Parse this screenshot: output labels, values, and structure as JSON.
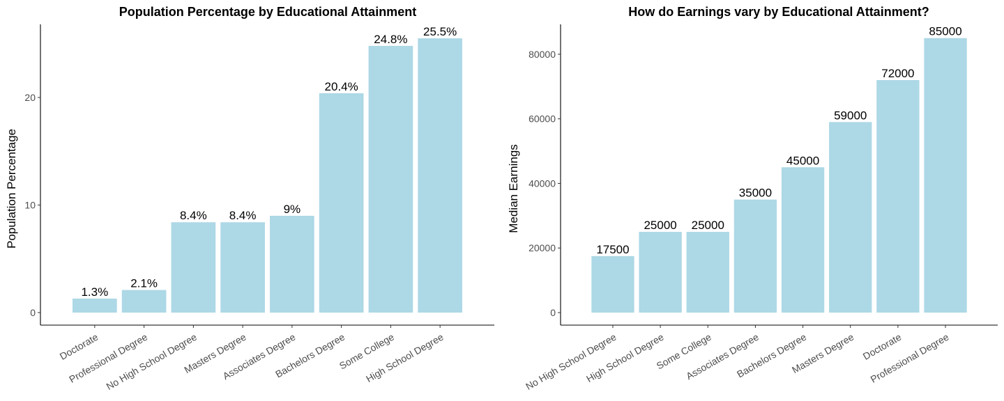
{
  "chart_data": [
    {
      "type": "bar",
      "title": "Population Percentage by Educational Attainment",
      "xlabel": "",
      "ylabel": "Population Percentage",
      "categories": [
        "Doctorate",
        "Professional Degree",
        "No High School Degree",
        "Masters Degree",
        "Associates Degree",
        "Bachelors Degree",
        "Some College",
        "High School Degree"
      ],
      "values": [
        1.3,
        2.1,
        8.4,
        8.4,
        9,
        20.4,
        24.8,
        25.5
      ],
      "data_labels": [
        "1.3%",
        "2.1%",
        "8.4%",
        "8.4%",
        "9%",
        "20.4%",
        "24.8%",
        "25.5%"
      ],
      "ylim": [
        0,
        26.8
      ],
      "yticks": [
        0,
        10,
        20
      ],
      "grid": false,
      "color": "#ADD8E6"
    },
    {
      "type": "bar",
      "title": "How do Earnings vary by Educational Attainment?",
      "xlabel": "",
      "ylabel": "Median Earnings",
      "categories": [
        "No High School Degree",
        "High School Degree",
        "Some College",
        "Associates Degree",
        "Bachelors Degree",
        "Masters Degree",
        "Doctorate",
        "Professional Degree"
      ],
      "values": [
        17500,
        25000,
        25000,
        35000,
        45000,
        59000,
        72000,
        85000
      ],
      "data_labels": [
        "17500",
        "25000",
        "25000",
        "35000",
        "45000",
        "59000",
        "72000",
        "85000"
      ],
      "ylim": [
        0,
        89250
      ],
      "yticks": [
        0,
        20000,
        40000,
        60000,
        80000
      ],
      "grid": false,
      "color": "#ADD8E6"
    }
  ]
}
